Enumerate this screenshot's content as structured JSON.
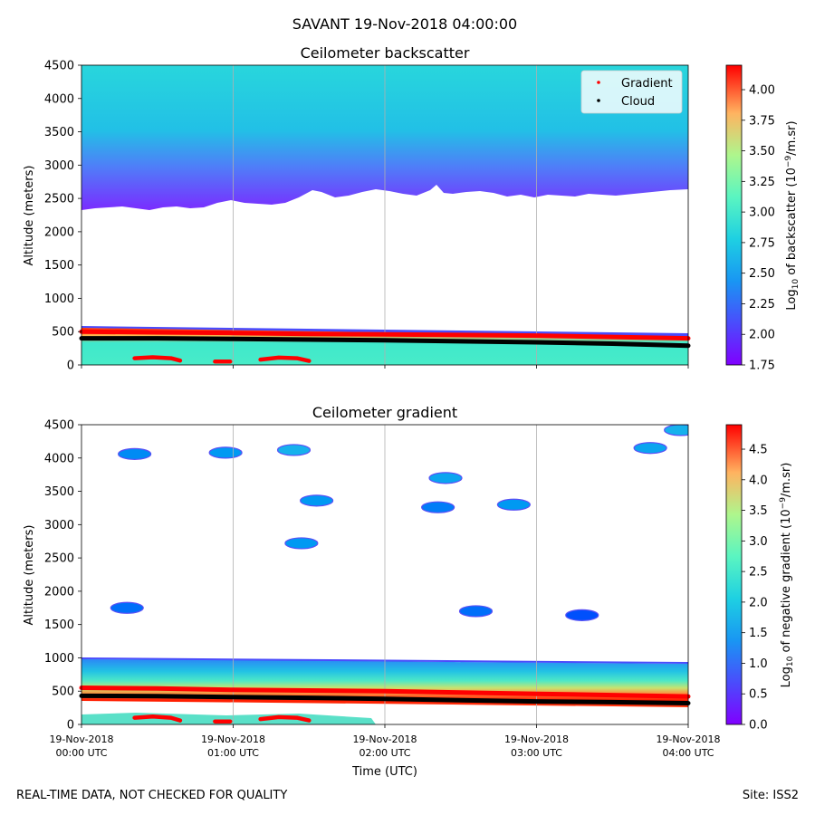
{
  "figure": {
    "suptitle": "SAVANT 19-Nov-2018 04:00:00",
    "footer_left": "REAL-TIME DATA, NOT CHECKED FOR QUALITY",
    "footer_right": "Site: ISS2"
  },
  "chart_data": [
    {
      "type": "heatmap",
      "title": "Ceilometer backscatter",
      "ylabel": "Altitude (meters)",
      "xlabel": "",
      "x_ticks": [
        [
          "19-Nov-2018",
          "00:00 UTC"
        ],
        [
          "19-Nov-2018",
          "01:00 UTC"
        ],
        [
          "19-Nov-2018",
          "02:00 UTC"
        ],
        [
          "19-Nov-2018",
          "03:00 UTC"
        ],
        [
          "19-Nov-2018",
          "04:00 UTC"
        ]
      ],
      "show_x_tick_labels": false,
      "x_range_hours": [
        0,
        4
      ],
      "ylim": [
        0,
        4500
      ],
      "y_ticks": [
        0,
        500,
        1000,
        1500,
        2000,
        2500,
        3000,
        3500,
        4000,
        4500
      ],
      "grid": "vertical",
      "colorbar": {
        "label": "Log10 of backscatter (10^-9/m.sr)",
        "range": [
          1.75,
          4.2
        ],
        "ticks": [
          "1.75",
          "2.00",
          "2.25",
          "2.50",
          "2.75",
          "3.00",
          "3.25",
          "3.50",
          "3.75",
          "4.00"
        ],
        "colormap": "rainbow"
      },
      "legend": {
        "placement": "top-right",
        "entries": [
          {
            "name": "Gradient",
            "color": "#ff0000"
          },
          {
            "name": "Cloud",
            "color": "#000000"
          }
        ]
      },
      "series": [
        {
          "name": "Gradient",
          "x_hours": [
            0,
            0.5,
            1.0,
            1.5,
            2.0,
            2.5,
            3.0,
            3.5,
            4.0
          ],
          "altitude_m": [
            500,
            490,
            480,
            465,
            460,
            450,
            440,
            420,
            400
          ]
        },
        {
          "name": "Cloud",
          "x_hours": [
            0,
            0.5,
            1.0,
            1.5,
            2.0,
            2.5,
            3.0,
            3.5,
            4.0
          ],
          "altitude_m": [
            400,
            400,
            390,
            380,
            370,
            355,
            340,
            320,
            290
          ]
        }
      ],
      "gradient_low_segments": [
        {
          "x_hours": [
            0.35,
            0.47,
            0.59,
            0.65
          ],
          "altitude_m": [
            100,
            115,
            100,
            65
          ]
        },
        {
          "x_hours": [
            0.88,
            0.98
          ],
          "altitude_m": [
            50,
            50
          ]
        },
        {
          "x_hours": [
            1.18,
            1.3,
            1.42,
            1.5
          ],
          "altitude_m": [
            80,
            110,
            100,
            60
          ]
        }
      ]
    },
    {
      "type": "heatmap",
      "title": "Ceilometer gradient",
      "ylabel": "Altitude (meters)",
      "xlabel": "Time (UTC)",
      "x_ticks": [
        [
          "19-Nov-2018",
          "00:00 UTC"
        ],
        [
          "19-Nov-2018",
          "01:00 UTC"
        ],
        [
          "19-Nov-2018",
          "02:00 UTC"
        ],
        [
          "19-Nov-2018",
          "03:00 UTC"
        ],
        [
          "19-Nov-2018",
          "04:00 UTC"
        ]
      ],
      "show_x_tick_labels": true,
      "x_range_hours": [
        0,
        4
      ],
      "ylim": [
        0,
        4500
      ],
      "y_ticks": [
        0,
        500,
        1000,
        1500,
        2000,
        2500,
        3000,
        3500,
        4000,
        4500
      ],
      "grid": "vertical",
      "colorbar": {
        "label": "Log10 of negative gradient (10^-9/m.sr)",
        "range": [
          0,
          4.9
        ],
        "ticks": [
          "0.0",
          "0.5",
          "1.0",
          "1.5",
          "2.0",
          "2.5",
          "3.0",
          "3.5",
          "4.0",
          "4.5"
        ],
        "colormap": "rainbow"
      },
      "series": [
        {
          "name": "Gradient",
          "x_hours": [
            0,
            0.5,
            1.0,
            1.5,
            2.0,
            2.5,
            3.0,
            3.5,
            4.0
          ],
          "altitude_m": [
            550,
            540,
            520,
            510,
            500,
            480,
            460,
            440,
            420
          ]
        },
        {
          "name": "Cloud",
          "x_hours": [
            0,
            0.5,
            1.0,
            1.5,
            2.0,
            2.5,
            3.0,
            3.5,
            4.0
          ],
          "altitude_m": [
            430,
            425,
            410,
            400,
            385,
            365,
            345,
            335,
            320
          ]
        }
      ],
      "gradient_low_segments": [
        {
          "x_hours": [
            0.35,
            0.47,
            0.59,
            0.65
          ],
          "altitude_m": [
            100,
            120,
            100,
            60
          ]
        },
        {
          "x_hours": [
            0.88,
            0.98
          ],
          "altitude_m": [
            45,
            45
          ]
        },
        {
          "x_hours": [
            1.18,
            1.3,
            1.42,
            1.5
          ],
          "altitude_m": [
            80,
            110,
            100,
            60
          ]
        }
      ],
      "cloud_patches": [
        {
          "x_hours": 0.35,
          "altitude_m": 4060,
          "level": 0.9
        },
        {
          "x_hours": 0.95,
          "altitude_m": 4080,
          "level": 1.0
        },
        {
          "x_hours": 1.4,
          "altitude_m": 4120,
          "level": 1.2
        },
        {
          "x_hours": 1.45,
          "altitude_m": 2720,
          "level": 1.0
        },
        {
          "x_hours": 1.55,
          "altitude_m": 3360,
          "level": 1.0
        },
        {
          "x_hours": 2.35,
          "altitude_m": 3260,
          "level": 0.8
        },
        {
          "x_hours": 2.4,
          "altitude_m": 3700,
          "level": 1.1
        },
        {
          "x_hours": 2.85,
          "altitude_m": 3300,
          "level": 1.0
        },
        {
          "x_hours": 3.75,
          "altitude_m": 4150,
          "level": 1.1
        },
        {
          "x_hours": 3.95,
          "altitude_m": 4420,
          "level": 1.2
        },
        {
          "x_hours": 0.3,
          "altitude_m": 1750,
          "level": 0.7
        },
        {
          "x_hours": 2.6,
          "altitude_m": 1700,
          "level": 0.7
        },
        {
          "x_hours": 3.3,
          "altitude_m": 1640,
          "level": 0.5
        }
      ]
    }
  ]
}
